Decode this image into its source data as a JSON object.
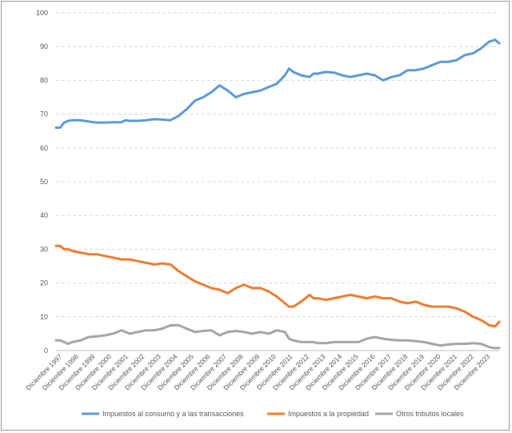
{
  "chart_data": {
    "type": "line",
    "title": "",
    "xlabel": "",
    "ylabel": "",
    "ylim": [
      0,
      100
    ],
    "yticks": [
      0,
      10,
      20,
      30,
      40,
      50,
      60,
      70,
      80,
      90,
      100
    ],
    "grid": true,
    "legend_position": "bottom",
    "categories": [
      "Diciembre 1997",
      "Diciembre 1998",
      "Diciembre 1999",
      "Diciembre 2000",
      "Diciembre 2001",
      "Diciembre 2002",
      "Diciembre 2003",
      "Diciembre 2004",
      "Diciembre 2005",
      "Diciembre 2006",
      "Diciembre 2007",
      "Diciembre 2008",
      "Diciembre 2009",
      "Diciembre 2010",
      "Diciembre 2011",
      "Diciembre 2012",
      "Diciembre 2013",
      "Diciembre 2014",
      "Diciembre 2015",
      "Diciembre 2016",
      "Diciembre 2017",
      "Diciembre 2018",
      "Diciembre 2019",
      "Diciembre 2020",
      "Diciembre 2021",
      "Diciembre 2022",
      "Diciembre 2023"
    ],
    "x": [
      1997.0,
      1997.25,
      1997.5,
      1997.75,
      1998.0,
      1998.5,
      1999.0,
      1999.5,
      2000.0,
      2000.5,
      2001.0,
      2001.25,
      2001.5,
      2002.0,
      2002.5,
      2003.0,
      2003.5,
      2004.0,
      2004.5,
      2005.0,
      2005.5,
      2006.0,
      2006.5,
      2007.0,
      2007.5,
      2008.0,
      2008.5,
      2009.0,
      2009.5,
      2010.0,
      2010.5,
      2011.0,
      2011.25,
      2011.5,
      2012.0,
      2012.5,
      2012.75,
      2013.0,
      2013.5,
      2014.0,
      2014.5,
      2015.0,
      2015.5,
      2016.0,
      2016.5,
      2017.0,
      2017.5,
      2018.0,
      2018.5,
      2019.0,
      2019.5,
      2020.0,
      2020.5,
      2021.0,
      2021.5,
      2022.0,
      2022.5,
      2023.0,
      2023.5,
      2023.85,
      2024.1
    ],
    "series": [
      {
        "name": "Impuestos al consumo y a las transacciones",
        "color": "#5b9bd5",
        "values": [
          66.0,
          66.0,
          67.5,
          68.0,
          68.2,
          68.2,
          67.8,
          67.5,
          67.5,
          67.6,
          67.6,
          68.2,
          68.0,
          68.0,
          68.2,
          68.5,
          68.4,
          68.2,
          69.5,
          71.5,
          74.0,
          75.0,
          76.5,
          78.5,
          77.0,
          75.0,
          76.0,
          76.5,
          77.0,
          78.0,
          79.0,
          81.5,
          83.5,
          82.5,
          81.5,
          81.0,
          82.0,
          82.0,
          82.5,
          82.3,
          81.5,
          81.0,
          81.5,
          82.0,
          81.5,
          80.0,
          81.0,
          81.5,
          83.0,
          83.0,
          83.5,
          84.5,
          85.5,
          85.5,
          86.0,
          87.5,
          88.0,
          89.5,
          91.5,
          92.0,
          91.0
        ]
      },
      {
        "name": "Impuestos a la propiedad",
        "color": "#ed7d31",
        "values": [
          31.0,
          31.0,
          30.0,
          30.0,
          29.5,
          29.0,
          28.5,
          28.5,
          28.0,
          27.5,
          27.0,
          27.0,
          27.0,
          26.5,
          26.0,
          25.5,
          25.8,
          25.5,
          23.5,
          22.0,
          20.5,
          19.5,
          18.5,
          18.0,
          17.0,
          18.5,
          19.5,
          18.5,
          18.5,
          17.5,
          16.0,
          14.0,
          13.0,
          13.0,
          14.5,
          16.5,
          15.5,
          15.5,
          15.0,
          15.5,
          16.0,
          16.5,
          16.0,
          15.5,
          16.0,
          15.5,
          15.5,
          14.5,
          14.0,
          14.5,
          13.5,
          13.0,
          13.0,
          13.0,
          12.5,
          11.5,
          10.0,
          9.0,
          7.5,
          7.2,
          8.5
        ]
      },
      {
        "name": "Otros tributos locales",
        "color": "#a5a5a5",
        "values": [
          3.0,
          3.0,
          2.5,
          2.0,
          2.5,
          3.0,
          4.0,
          4.2,
          4.5,
          5.0,
          6.0,
          5.5,
          5.0,
          5.5,
          6.0,
          6.0,
          6.5,
          7.5,
          7.5,
          6.5,
          5.5,
          5.8,
          6.0,
          4.5,
          5.5,
          5.8,
          5.5,
          5.0,
          5.5,
          5.0,
          6.0,
          5.5,
          3.5,
          3.0,
          2.5,
          2.5,
          2.5,
          2.2,
          2.2,
          2.5,
          2.5,
          2.5,
          2.5,
          3.5,
          4.0,
          3.5,
          3.2,
          3.0,
          3.0,
          2.8,
          2.5,
          2.0,
          1.5,
          1.8,
          2.0,
          2.0,
          2.2,
          2.0,
          1.0,
          0.7,
          0.8
        ]
      }
    ]
  }
}
